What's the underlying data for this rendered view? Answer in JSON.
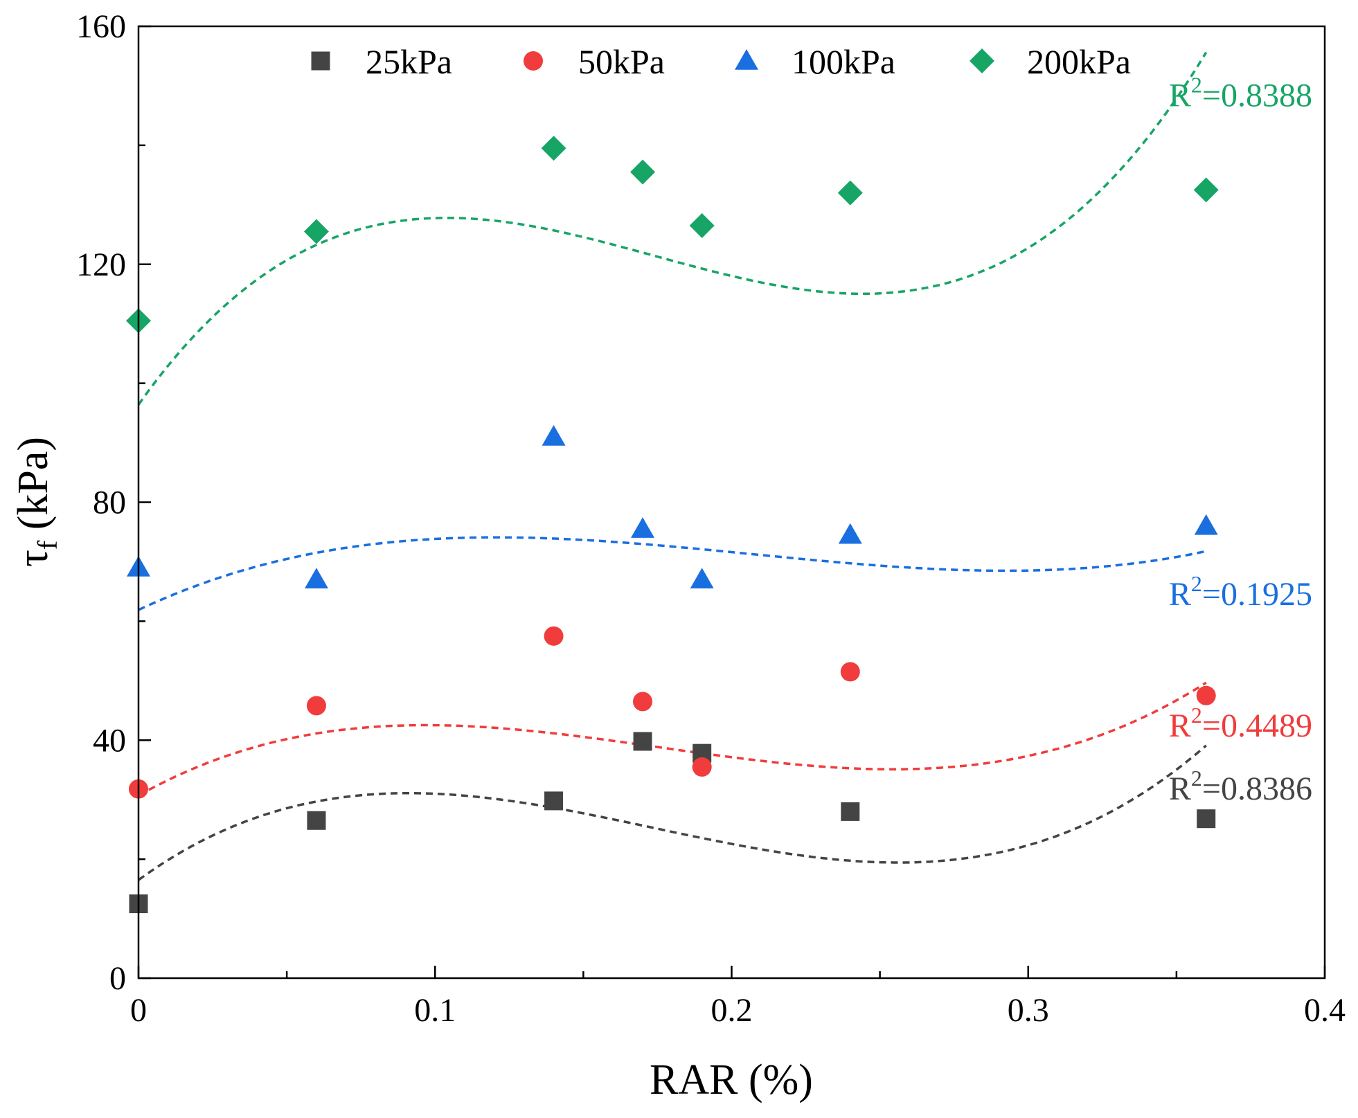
{
  "chart_data": {
    "type": "scatter",
    "xlabel": "RAR (%)",
    "ylabel_main": "τ",
    "ylabel_sub": "f",
    "ylabel_unit": " (kPa)",
    "xlim": [
      0,
      0.4
    ],
    "ylim": [
      0,
      160
    ],
    "xticks": [
      0,
      0.1,
      0.2,
      0.3,
      0.4
    ],
    "xtick_labels": [
      "0",
      "0.1",
      "0.2",
      "0.3",
      "0.4"
    ],
    "yticks": [
      0,
      40,
      80,
      120,
      160
    ],
    "ytick_labels": [
      "0",
      "40",
      "80",
      "120",
      "160"
    ],
    "legend_position": "top",
    "series": [
      {
        "name": "25kPa",
        "marker": "square",
        "color": "#444444",
        "x": [
          0,
          0.06,
          0.14,
          0.17,
          0.19,
          0.24,
          0.36
        ],
        "y": [
          12.5,
          26.5,
          29.8,
          39.8,
          37.8,
          28,
          26.8
        ],
        "fit": {
          "type": "polynomial-3",
          "coefficients": [
            16.5,
            363.6,
            -2705,
            5193
          ],
          "r2_label": "R",
          "r2_sup": "2",
          "r2_value": "=0.8386"
        }
      },
      {
        "name": "50kPa",
        "marker": "circle",
        "color": "#f03c3c",
        "x": [
          0,
          0.06,
          0.14,
          0.17,
          0.19,
          0.24,
          0.36
        ],
        "y": [
          31.8,
          45.8,
          57.5,
          46.5,
          35.5,
          51.5,
          47.5
        ],
        "fit": {
          "type": "polynomial-3",
          "coefficients": [
            30.7,
            280.2,
            -2000,
            3800
          ],
          "r2_label": "R",
          "r2_sup": "2",
          "r2_value": "=0.4489"
        }
      },
      {
        "name": "100kPa",
        "marker": "triangle",
        "color": "#1a6fe0",
        "x": [
          0,
          0.06,
          0.14,
          0.17,
          0.19,
          0.24,
          0.36
        ],
        "y": [
          69,
          67,
          91,
          75.5,
          67,
          74.5,
          76
        ],
        "fit": {
          "type": "polynomial-3",
          "coefficients": [
            61.9,
            234.4,
            -1372,
            2214
          ],
          "r2_label": "R",
          "r2_sup": "2",
          "r2_value": "=0.1925"
        }
      },
      {
        "name": "200kPa",
        "marker": "diamond",
        "color": "#17a566",
        "x": [
          0,
          0.06,
          0.14,
          0.17,
          0.19,
          0.24,
          0.36
        ],
        "y": [
          110.5,
          125.5,
          139.5,
          135.5,
          126.5,
          132,
          132.5
        ],
        "fit": {
          "type": "polynomial-3",
          "coefficients": [
            96.4,
            704.4,
            -4833,
            9259
          ],
          "r2_label": "R",
          "r2_sup": "2",
          "r2_value": "=0.8388"
        }
      }
    ]
  }
}
